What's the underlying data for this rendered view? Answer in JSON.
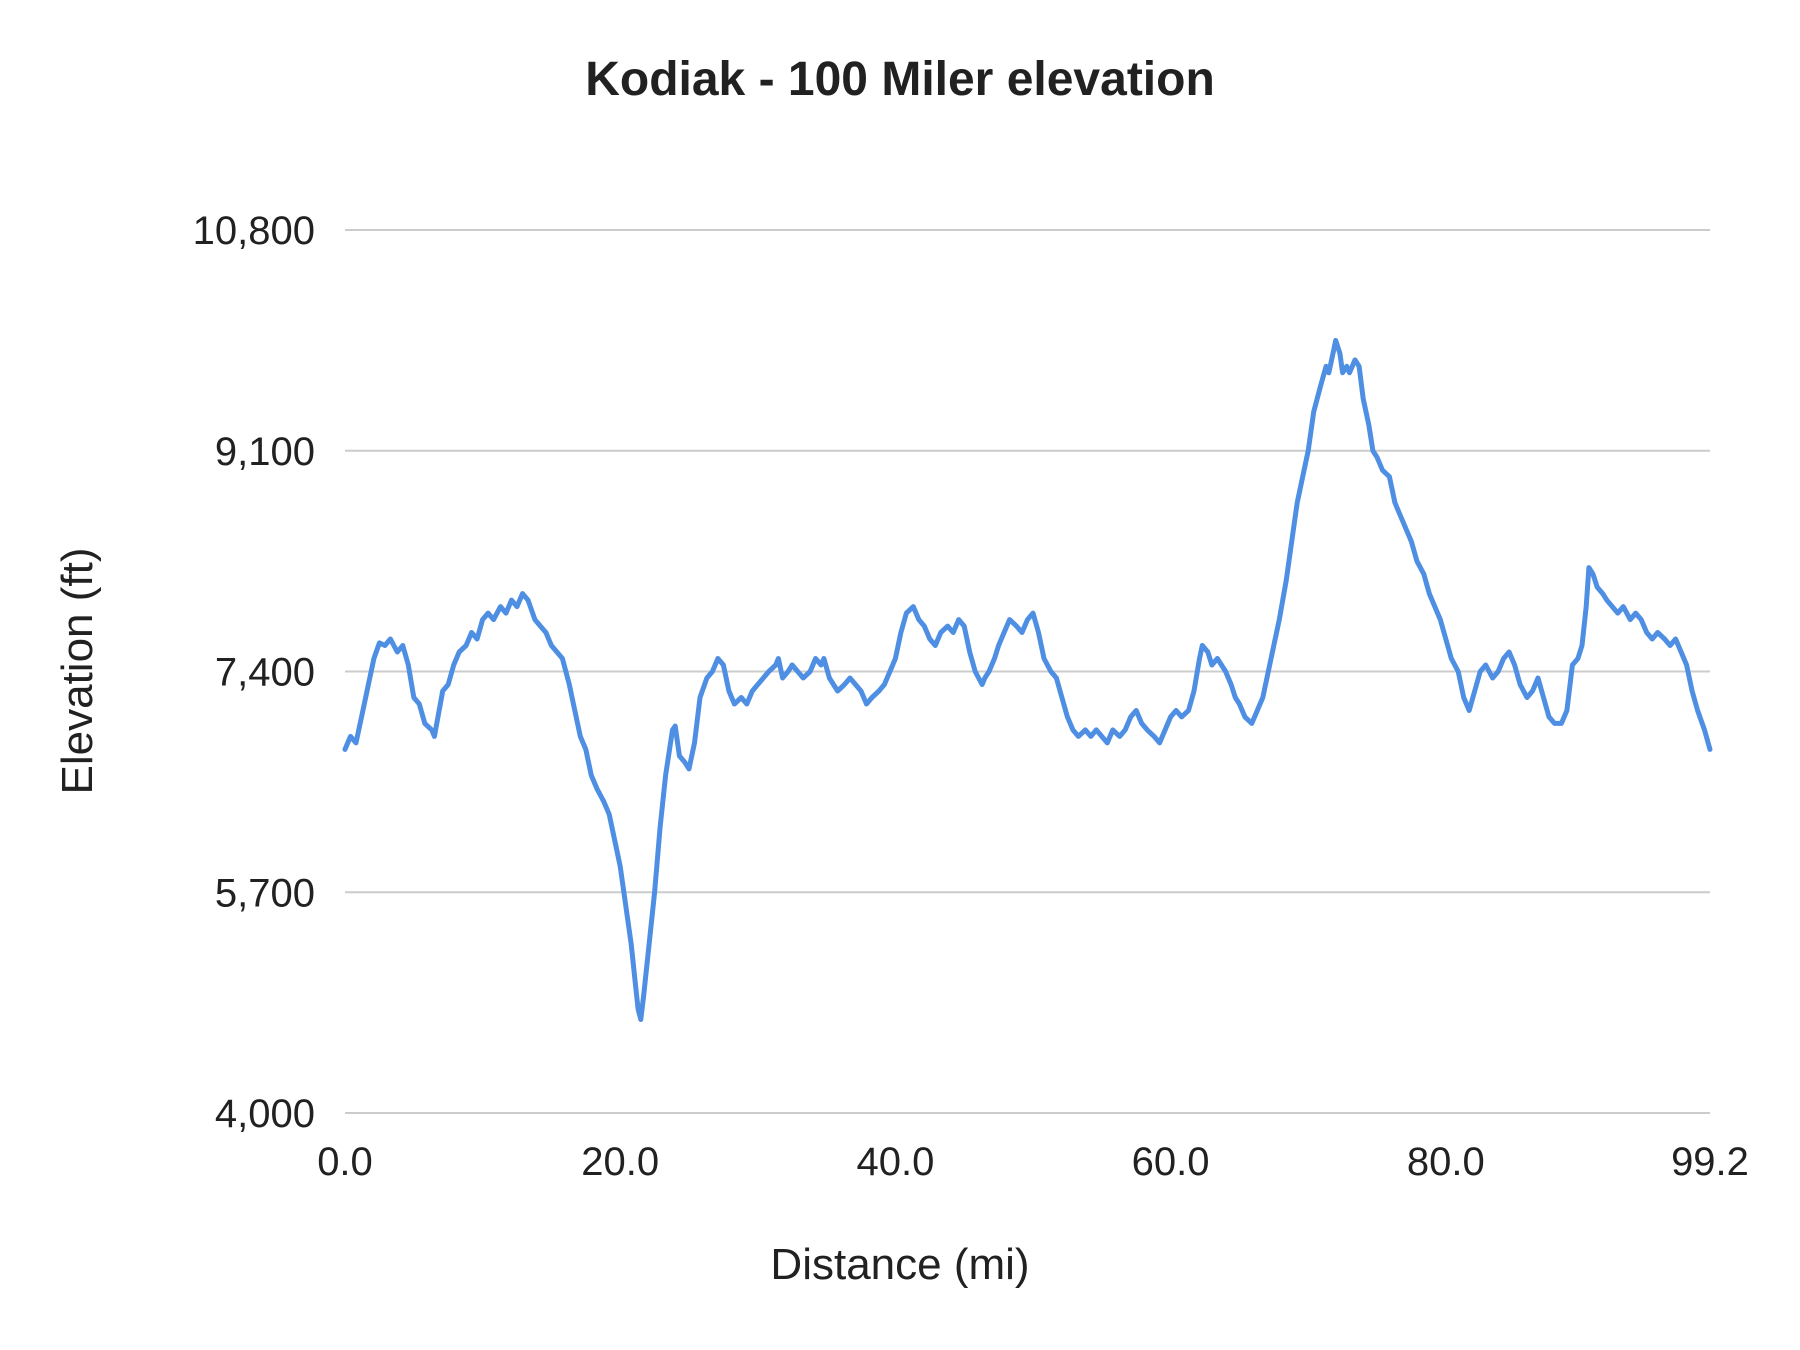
{
  "chart_data": {
    "type": "line",
    "title": "Kodiak - 100 Miler elevation",
    "xlabel": "Distance (mi)",
    "ylabel": "Elevation (ft)",
    "xlim": [
      0,
      99.2
    ],
    "ylim": [
      4000,
      10800
    ],
    "grid": "horizontal-only",
    "legend": "none",
    "line_color": "#4e8fe3",
    "grid_color": "#cccccc",
    "x_ticks": [
      {
        "value": 0,
        "label": "0.0"
      },
      {
        "value": 20,
        "label": "20.0"
      },
      {
        "value": 40,
        "label": "40.0"
      },
      {
        "value": 60,
        "label": "60.0"
      },
      {
        "value": 80,
        "label": "80.0"
      },
      {
        "value": 99.2,
        "label": "99.2"
      }
    ],
    "y_ticks": [
      {
        "value": 4000,
        "label": "4,000"
      },
      {
        "value": 5700,
        "label": "5,700"
      },
      {
        "value": 7400,
        "label": "7,400"
      },
      {
        "value": 9100,
        "label": "9,100"
      },
      {
        "value": 10800,
        "label": "10,800"
      }
    ],
    "series": [
      {
        "name": "Elevation",
        "points": [
          [
            0,
            6800
          ],
          [
            0.4,
            6900
          ],
          [
            0.8,
            6850
          ],
          [
            1.3,
            7100
          ],
          [
            1.7,
            7300
          ],
          [
            2.1,
            7500
          ],
          [
            2.5,
            7620
          ],
          [
            2.9,
            7600
          ],
          [
            3.3,
            7650
          ],
          [
            3.8,
            7550
          ],
          [
            4.2,
            7600
          ],
          [
            4.6,
            7450
          ],
          [
            5,
            7200
          ],
          [
            5.4,
            7150
          ],
          [
            5.8,
            7000
          ],
          [
            6.3,
            6950
          ],
          [
            6.5,
            6900
          ],
          [
            7.1,
            7250
          ],
          [
            7.5,
            7300
          ],
          [
            7.9,
            7450
          ],
          [
            8.3,
            7550
          ],
          [
            8.8,
            7600
          ],
          [
            9.2,
            7700
          ],
          [
            9.6,
            7650
          ],
          [
            10,
            7800
          ],
          [
            10.4,
            7850
          ],
          [
            10.8,
            7800
          ],
          [
            11.3,
            7900
          ],
          [
            11.7,
            7850
          ],
          [
            12.1,
            7950
          ],
          [
            12.5,
            7900
          ],
          [
            12.9,
            8000
          ],
          [
            13.3,
            7950
          ],
          [
            13.8,
            7800
          ],
          [
            14.2,
            7750
          ],
          [
            14.6,
            7700
          ],
          [
            15,
            7600
          ],
          [
            15.4,
            7550
          ],
          [
            15.8,
            7500
          ],
          [
            16.3,
            7300
          ],
          [
            16.7,
            7100
          ],
          [
            17.1,
            6900
          ],
          [
            17.5,
            6800
          ],
          [
            17.9,
            6600
          ],
          [
            18.3,
            6500
          ],
          [
            18.8,
            6400
          ],
          [
            19.2,
            6300
          ],
          [
            19.6,
            6100
          ],
          [
            20,
            5900
          ],
          [
            20.4,
            5600
          ],
          [
            20.8,
            5300
          ],
          [
            21.1,
            5000
          ],
          [
            21.3,
            4800
          ],
          [
            21.5,
            4720
          ],
          [
            21.7,
            4900
          ],
          [
            22.1,
            5300
          ],
          [
            22.5,
            5700
          ],
          [
            22.9,
            6200
          ],
          [
            23.3,
            6600
          ],
          [
            23.8,
            6950
          ],
          [
            24,
            6980
          ],
          [
            24.3,
            6750
          ],
          [
            24.7,
            6700
          ],
          [
            25,
            6650
          ],
          [
            25.4,
            6850
          ],
          [
            25.8,
            7200
          ],
          [
            26.3,
            7350
          ],
          [
            26.7,
            7400
          ],
          [
            27.1,
            7500
          ],
          [
            27.5,
            7450
          ],
          [
            27.9,
            7250
          ],
          [
            28.3,
            7150
          ],
          [
            28.8,
            7200
          ],
          [
            29.2,
            7150
          ],
          [
            29.6,
            7250
          ],
          [
            30,
            7300
          ],
          [
            30.4,
            7350
          ],
          [
            30.8,
            7400
          ],
          [
            31.3,
            7450
          ],
          [
            31.5,
            7500
          ],
          [
            31.8,
            7350
          ],
          [
            32.2,
            7400
          ],
          [
            32.5,
            7450
          ],
          [
            32.9,
            7400
          ],
          [
            33.3,
            7350
          ],
          [
            33.8,
            7400
          ],
          [
            34.2,
            7500
          ],
          [
            34.6,
            7450
          ],
          [
            34.8,
            7500
          ],
          [
            35.2,
            7350
          ],
          [
            35.5,
            7300
          ],
          [
            35.8,
            7250
          ],
          [
            36.3,
            7300
          ],
          [
            36.7,
            7350
          ],
          [
            37.1,
            7300
          ],
          [
            37.5,
            7250
          ],
          [
            37.9,
            7150
          ],
          [
            38.3,
            7200
          ],
          [
            38.8,
            7250
          ],
          [
            39.2,
            7300
          ],
          [
            39.6,
            7400
          ],
          [
            40,
            7500
          ],
          [
            40.4,
            7700
          ],
          [
            40.8,
            7850
          ],
          [
            41.3,
            7900
          ],
          [
            41.7,
            7800
          ],
          [
            42.1,
            7750
          ],
          [
            42.5,
            7650
          ],
          [
            42.9,
            7600
          ],
          [
            43.3,
            7700
          ],
          [
            43.8,
            7750
          ],
          [
            44.2,
            7700
          ],
          [
            44.6,
            7800
          ],
          [
            45,
            7750
          ],
          [
            45.4,
            7550
          ],
          [
            45.8,
            7400
          ],
          [
            46.3,
            7300
          ],
          [
            46.5,
            7350
          ],
          [
            46.8,
            7400
          ],
          [
            47.2,
            7500
          ],
          [
            47.5,
            7600
          ],
          [
            47.9,
            7700
          ],
          [
            48.3,
            7800
          ],
          [
            48.8,
            7750
          ],
          [
            49.2,
            7700
          ],
          [
            49.6,
            7800
          ],
          [
            50,
            7850
          ],
          [
            50.4,
            7700
          ],
          [
            50.8,
            7500
          ],
          [
            51.3,
            7400
          ],
          [
            51.7,
            7350
          ],
          [
            52.1,
            7200
          ],
          [
            52.5,
            7050
          ],
          [
            52.9,
            6950
          ],
          [
            53.3,
            6900
          ],
          [
            53.8,
            6950
          ],
          [
            54.2,
            6900
          ],
          [
            54.6,
            6950
          ],
          [
            55,
            6900
          ],
          [
            55.4,
            6850
          ],
          [
            55.8,
            6950
          ],
          [
            56.3,
            6900
          ],
          [
            56.7,
            6950
          ],
          [
            57.1,
            7050
          ],
          [
            57.5,
            7100
          ],
          [
            57.9,
            7000
          ],
          [
            58.3,
            6950
          ],
          [
            58.8,
            6900
          ],
          [
            59.2,
            6850
          ],
          [
            59.6,
            6950
          ],
          [
            60,
            7050
          ],
          [
            60.4,
            7100
          ],
          [
            60.8,
            7050
          ],
          [
            61.3,
            7100
          ],
          [
            61.7,
            7250
          ],
          [
            62.1,
            7500
          ],
          [
            62.3,
            7600
          ],
          [
            62.7,
            7550
          ],
          [
            63,
            7450
          ],
          [
            63.4,
            7500
          ],
          [
            63.7,
            7450
          ],
          [
            64,
            7400
          ],
          [
            64.4,
            7300
          ],
          [
            64.7,
            7200
          ],
          [
            65,
            7150
          ],
          [
            65.4,
            7050
          ],
          [
            65.9,
            7000
          ],
          [
            66.3,
            7100
          ],
          [
            66.7,
            7200
          ],
          [
            67.1,
            7400
          ],
          [
            67.5,
            7600
          ],
          [
            67.9,
            7800
          ],
          [
            68.4,
            8100
          ],
          [
            68.8,
            8400
          ],
          [
            69.2,
            8700
          ],
          [
            69.6,
            8900
          ],
          [
            70,
            9100
          ],
          [
            70.4,
            9400
          ],
          [
            70.9,
            9600
          ],
          [
            71.3,
            9750
          ],
          [
            71.5,
            9700
          ],
          [
            71.8,
            9850
          ],
          [
            72,
            9950
          ],
          [
            72.3,
            9850
          ],
          [
            72.5,
            9700
          ],
          [
            72.8,
            9750
          ],
          [
            73,
            9700
          ],
          [
            73.4,
            9800
          ],
          [
            73.7,
            9750
          ],
          [
            74,
            9500
          ],
          [
            74.4,
            9300
          ],
          [
            74.7,
            9100
          ],
          [
            75,
            9050
          ],
          [
            75.4,
            8950
          ],
          [
            75.9,
            8900
          ],
          [
            76.3,
            8700
          ],
          [
            76.7,
            8600
          ],
          [
            77.1,
            8500
          ],
          [
            77.5,
            8400
          ],
          [
            77.9,
            8250
          ],
          [
            78.4,
            8150
          ],
          [
            78.8,
            8000
          ],
          [
            79.2,
            7900
          ],
          [
            79.6,
            7800
          ],
          [
            80,
            7650
          ],
          [
            80.4,
            7500
          ],
          [
            80.9,
            7400
          ],
          [
            81.3,
            7200
          ],
          [
            81.7,
            7100
          ],
          [
            82.1,
            7250
          ],
          [
            82.5,
            7400
          ],
          [
            82.9,
            7450
          ],
          [
            83.4,
            7350
          ],
          [
            83.8,
            7400
          ],
          [
            84.2,
            7500
          ],
          [
            84.6,
            7550
          ],
          [
            85,
            7450
          ],
          [
            85.4,
            7300
          ],
          [
            85.9,
            7200
          ],
          [
            86.3,
            7250
          ],
          [
            86.7,
            7350
          ],
          [
            87.1,
            7200
          ],
          [
            87.5,
            7050
          ],
          [
            87.9,
            7000
          ],
          [
            88.4,
            7000
          ],
          [
            88.8,
            7100
          ],
          [
            89.2,
            7450
          ],
          [
            89.6,
            7500
          ],
          [
            89.9,
            7600
          ],
          [
            90.2,
            7900
          ],
          [
            90.4,
            8200
          ],
          [
            90.7,
            8150
          ],
          [
            91,
            8050
          ],
          [
            91.4,
            8000
          ],
          [
            91.7,
            7950
          ],
          [
            92.1,
            7900
          ],
          [
            92.5,
            7850
          ],
          [
            92.9,
            7900
          ],
          [
            93.4,
            7800
          ],
          [
            93.8,
            7850
          ],
          [
            94.2,
            7800
          ],
          [
            94.6,
            7700
          ],
          [
            95,
            7650
          ],
          [
            95.4,
            7700
          ],
          [
            95.9,
            7650
          ],
          [
            96.3,
            7600
          ],
          [
            96.7,
            7650
          ],
          [
            97.1,
            7550
          ],
          [
            97.5,
            7450
          ],
          [
            97.9,
            7250
          ],
          [
            98.3,
            7100
          ],
          [
            98.8,
            6950
          ],
          [
            99.2,
            6800
          ]
        ]
      }
    ]
  }
}
